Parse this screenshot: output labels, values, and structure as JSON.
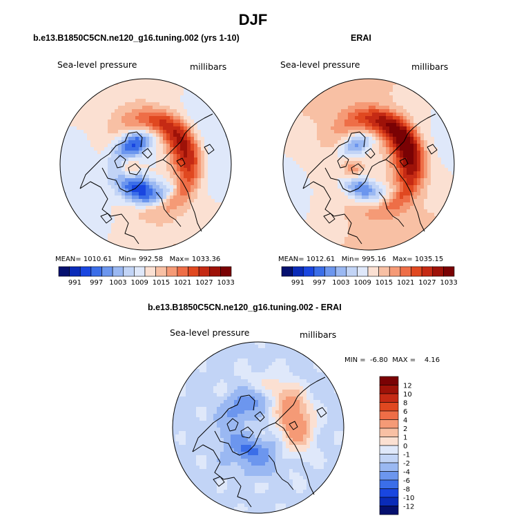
{
  "figure": {
    "title": "DJF",
    "colors": {
      "ramp": [
        "#05106f",
        "#0a2bb8",
        "#1946e0",
        "#3b6ee8",
        "#6c96ee",
        "#9ab8f2",
        "#c2d4f6",
        "#dfe8fa",
        "#fbe0d2",
        "#f8c0a4",
        "#f59a76",
        "#ee6e47",
        "#e04820",
        "#c52a14",
        "#9e1208",
        "#7a0204"
      ],
      "coast": "#000000"
    }
  },
  "panels": {
    "model": {
      "title": "b.e13.B1850C5CN.ne120_g16.tuning.002 (yrs 1-10)",
      "variable": "Sea-level pressure",
      "units": "millibars",
      "mean_label": "MEAN=",
      "mean": "1010.61",
      "min_label": "Min=",
      "min": "992.58",
      "max_label": "Max=",
      "max": "1033.36"
    },
    "obs": {
      "title": "ERAI",
      "variable": "Sea-level pressure",
      "units": "millibars",
      "mean_label": "MEAN=",
      "mean": "1012.61",
      "min_label": "Min=",
      "min": "995.16",
      "max_label": "Max=",
      "max": "1035.15"
    },
    "diff": {
      "title": "b.e13.B1850C5CN.ne120_g16.tuning.002 - ERAI",
      "variable": "Sea-level pressure",
      "units": "millibars",
      "min_label": "MIN =",
      "min": "-6.80",
      "max_label": "MAX =",
      "max": "4.16"
    }
  },
  "chart_data": [
    {
      "type": "heatmap",
      "title": "b.e13.B1850C5CN.ne120_g16.tuning.002 (yrs 1-10)",
      "projection": "north polar stereographic",
      "variable": "Sea-level pressure",
      "units": "millibars",
      "colorbar_ticks": [
        "991",
        "997",
        "1003",
        "1009",
        "1015",
        "1021",
        "1027",
        "1033"
      ],
      "colorbar_levels": [
        988,
        991,
        994,
        997,
        1000,
        1003,
        1006,
        1009,
        1012,
        1015,
        1018,
        1021,
        1024,
        1027,
        1030,
        1033,
        1036
      ],
      "fields": {
        "cyclones": [
          {
            "lon": 200,
            "colat": 26,
            "sx": 13,
            "sy": 9,
            "amp": -19
          },
          {
            "lon": 330,
            "colat": 25,
            "sx": 13,
            "sy": 9,
            "amp": -17
          },
          {
            "lon": 150,
            "colat": 38,
            "sx": 11,
            "sy": 6,
            "amp": -9
          }
        ],
        "anticyclones": [
          {
            "lon": 70,
            "colat": 42,
            "sx": 17,
            "sy": 11,
            "amp": 20
          },
          {
            "lon": 40,
            "colat": 52,
            "sx": 10,
            "sy": 7,
            "amp": 4
          },
          {
            "lon": 250,
            "colat": 22,
            "sx": 12,
            "sy": 10,
            "amp": 6
          }
        ],
        "base": 1012,
        "wave": 3,
        "wave_phase": 0.6
      }
    },
    {
      "type": "heatmap",
      "title": "ERAI",
      "projection": "north polar stereographic",
      "variable": "Sea-level pressure",
      "units": "millibars",
      "colorbar_ticks": [
        "991",
        "997",
        "1003",
        "1009",
        "1015",
        "1021",
        "1027",
        "1033"
      ],
      "colorbar_levels": [
        988,
        991,
        994,
        997,
        1000,
        1003,
        1006,
        1009,
        1012,
        1015,
        1018,
        1021,
        1024,
        1027,
        1030,
        1033,
        1036
      ],
      "fields": {
        "cyclones": [
          {
            "lon": 200,
            "colat": 26,
            "sx": 12,
            "sy": 8,
            "amp": -16
          },
          {
            "lon": 330,
            "colat": 25,
            "sx": 12,
            "sy": 8,
            "amp": -13
          },
          {
            "lon": 150,
            "colat": 38,
            "sx": 10,
            "sy": 6,
            "amp": -7
          }
        ],
        "anticyclones": [
          {
            "lon": 70,
            "colat": 42,
            "sx": 17,
            "sy": 11,
            "amp": 22
          },
          {
            "lon": 40,
            "colat": 52,
            "sx": 10,
            "sy": 7,
            "amp": 6
          },
          {
            "lon": 250,
            "colat": 22,
            "sx": 12,
            "sy": 10,
            "amp": 8
          }
        ],
        "base": 1014,
        "wave": 3,
        "wave_phase": 0.6
      }
    },
    {
      "type": "heatmap",
      "title": "b.e13.B1850C5CN.ne120_g16.tuning.002 - ERAI",
      "projection": "north polar stereographic",
      "variable": "Sea-level pressure",
      "units": "millibars",
      "colorbar_ticks": [
        "12",
        "10",
        "8",
        "6",
        "4",
        "2",
        "1",
        "0",
        "-1",
        "-2",
        "-4",
        "-6",
        "-8",
        "-10",
        "-12"
      ],
      "colorbar_levels": [
        -14,
        -12,
        -10,
        -8,
        -6,
        -4,
        -2,
        -1,
        0,
        1,
        2,
        4,
        6,
        8,
        10,
        12,
        14
      ]
    }
  ]
}
